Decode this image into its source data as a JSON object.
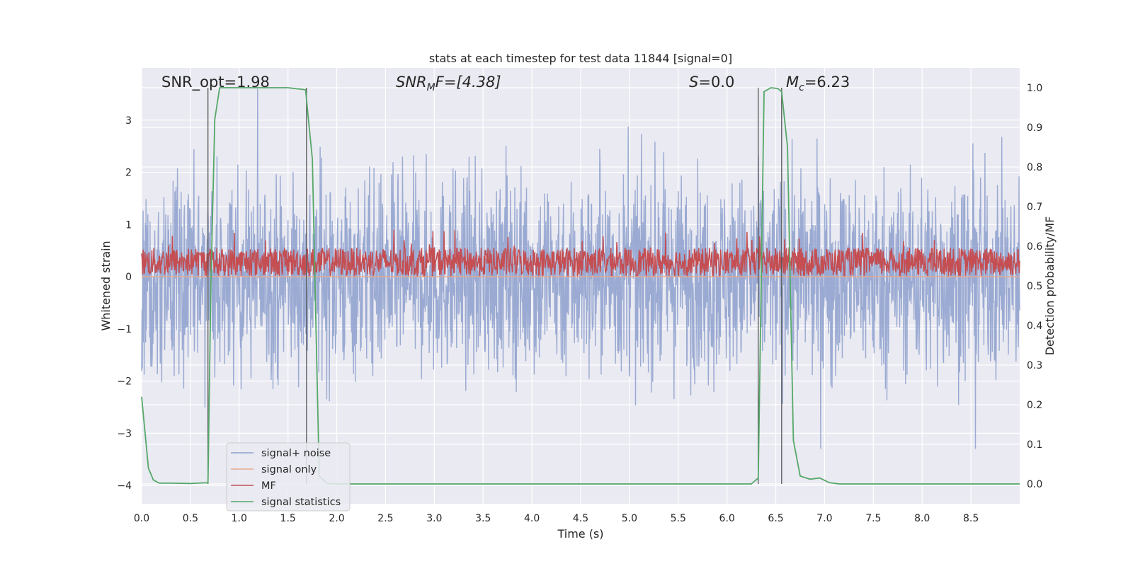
{
  "chart_data": {
    "type": "line",
    "title": "stats at each timestep for test data 11844 [signal=0]",
    "xlabel": "Time (s)",
    "ylabel_left": "Whitened strain",
    "ylabel_right": "Detection probability/MF",
    "xlim": [
      0.0,
      9.0
    ],
    "ylim_left": [
      -4.35,
      4.0
    ],
    "ylim_right": [
      -0.05,
      1.05
    ],
    "x_ticks": [
      "0.0",
      "0.5",
      "1.0",
      "1.5",
      "2.0",
      "2.5",
      "3.0",
      "3.5",
      "4.0",
      "4.5",
      "5.0",
      "5.5",
      "6.0",
      "6.5",
      "7.0",
      "7.5",
      "8.0",
      "8.5"
    ],
    "y_ticks_left": [
      "−4",
      "−3",
      "−2",
      "−1",
      "0",
      "1",
      "2",
      "3"
    ],
    "y_ticks_right": [
      "0.0",
      "0.1",
      "0.2",
      "0.3",
      "0.4",
      "0.5",
      "0.6",
      "0.7",
      "0.8",
      "0.9",
      "1.0"
    ],
    "grid": true,
    "legend_position": "lower-left",
    "annotations": {
      "snr_opt": "SNR_opt=1.98",
      "snr_mf_prefix": "SNR",
      "snr_mf_sub": "M",
      "snr_mf_suffix": "F=[4.38]",
      "s_prefix": "S",
      "s_suffix": "=0.0",
      "mc_prefix": "M",
      "mc_sub": "c",
      "mc_suffix": "=6.23"
    },
    "vertical_lines_x": [
      0.68,
      1.69,
      6.32,
      6.56
    ],
    "series": [
      {
        "name": "signal+ noise",
        "color": "#8c9fcc",
        "axis": "left",
        "amplitude_range": [
          -3.3,
          3.6
        ]
      },
      {
        "name": "signal only",
        "color": "#e8a98a",
        "axis": "left",
        "values_constant": 0.0
      },
      {
        "name": "MF",
        "color": "#c44e52",
        "axis": "left",
        "amplitude_range": [
          0.0,
          1.0
        ]
      },
      {
        "name": "signal statistics",
        "color": "#55a868",
        "axis": "right",
        "x": [
          0.0,
          0.07,
          0.12,
          0.18,
          0.3,
          0.5,
          0.68,
          0.71,
          0.75,
          0.8,
          1.0,
          1.5,
          1.68,
          1.75,
          1.82,
          1.9,
          2.0,
          4.0,
          6.0,
          6.25,
          6.32,
          6.38,
          6.45,
          6.52,
          6.56,
          6.62,
          6.68,
          6.75,
          6.85,
          6.95,
          7.05,
          7.15,
          8.0,
          9.0
        ],
        "values": [
          0.22,
          0.04,
          0.01,
          0.002,
          0.002,
          0.001,
          0.003,
          0.5,
          0.92,
          1.0,
          1.0,
          1.0,
          0.995,
          0.82,
          0.02,
          0.001,
          0.0,
          0.0,
          0.0,
          0.0,
          0.015,
          0.99,
          1.0,
          0.998,
          0.99,
          0.85,
          0.11,
          0.02,
          0.012,
          0.015,
          0.003,
          0.0,
          0.0,
          0.0
        ]
      }
    ]
  }
}
